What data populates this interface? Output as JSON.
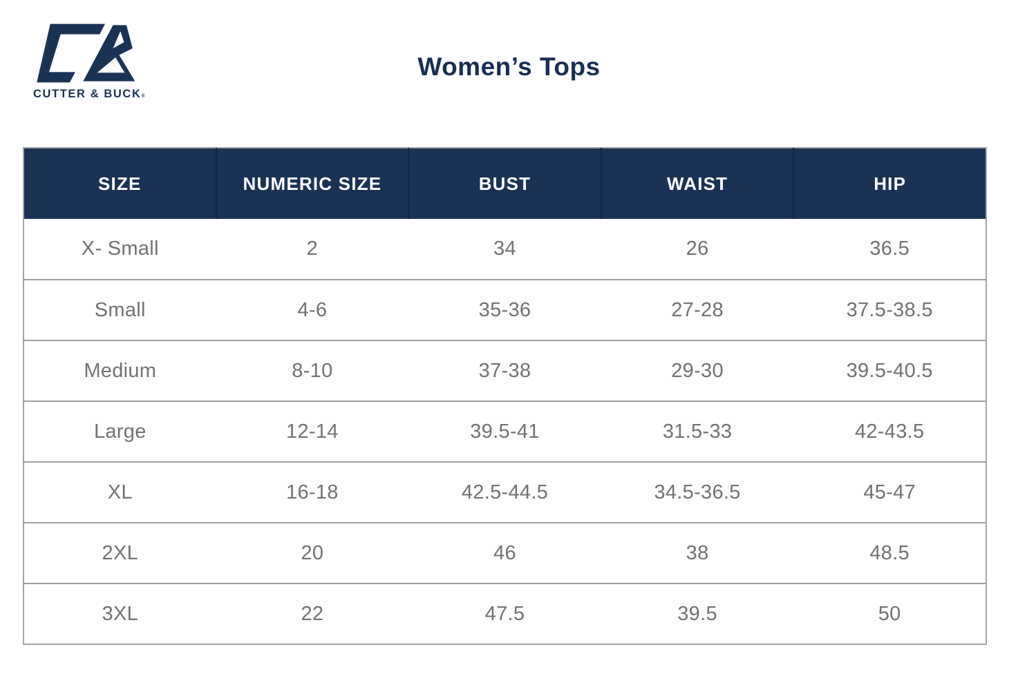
{
  "brand": {
    "name": "CUTTER & BUCK",
    "registered_mark": "®",
    "logo_icon": "cutter-buck-cb-monogram"
  },
  "page": {
    "title": "Women’s Tops"
  },
  "colors": {
    "navy": "#1A3254",
    "title_navy": "#1A2E52",
    "cell_text_gray": "#717276",
    "grid_line_gray": "#9D9EA0",
    "header_text": "#FFFFFF",
    "background": "#FFFFFF"
  },
  "chart_data": {
    "type": "table",
    "title": "Women’s Tops",
    "columns": [
      "SIZE",
      "NUMERIC SIZE",
      "BUST",
      "WAIST",
      "HIP"
    ],
    "rows": [
      [
        "X- Small",
        "2",
        "34",
        "26",
        "36.5"
      ],
      [
        "Small",
        "4-6",
        "35-36",
        "27-28",
        "37.5-38.5"
      ],
      [
        "Medium",
        "8-10",
        "37-38",
        "29-30",
        "39.5-40.5"
      ],
      [
        "Large",
        "12-14",
        "39.5-41",
        "31.5-33",
        "42-43.5"
      ],
      [
        "XL",
        "16-18",
        "42.5-44.5",
        "34.5-36.5",
        "45-47"
      ],
      [
        "2XL",
        "20",
        "46",
        "38",
        "48.5"
      ],
      [
        "3XL",
        "22",
        "47.5",
        "39.5",
        "50"
      ]
    ],
    "layout": {
      "header_background": "#1A3254",
      "grid": "horizontal-lines",
      "columns_equal_width": true
    }
  }
}
